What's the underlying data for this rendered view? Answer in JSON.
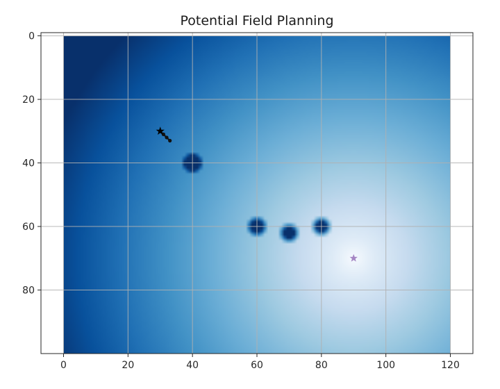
{
  "chart_data": {
    "type": "heatmap",
    "title": "Potential Field Planning",
    "xlabel": "",
    "ylabel": "",
    "xlim": [
      -7,
      127
    ],
    "ylim": [
      100,
      -1
    ],
    "x_ticks": [
      0,
      20,
      40,
      60,
      80,
      100,
      120
    ],
    "y_ticks": [
      0,
      20,
      40,
      60,
      80
    ],
    "grid": true,
    "colormap": "Blues_r",
    "field_extent": {
      "x": [
        0,
        120
      ],
      "y": [
        0,
        100
      ]
    },
    "goal": {
      "x": 90,
      "y": 70
    },
    "obstacles": [
      {
        "x": 40,
        "y": 40
      },
      {
        "x": 60,
        "y": 60
      },
      {
        "x": 70,
        "y": 62
      },
      {
        "x": 80,
        "y": 60
      }
    ],
    "path": [
      {
        "x": 30,
        "y": 30
      },
      {
        "x": 31,
        "y": 31
      },
      {
        "x": 32,
        "y": 32
      },
      {
        "x": 33,
        "y": 33
      }
    ],
    "colors": {
      "start_marker": "#000000",
      "path": "#111111",
      "goal_marker": "#a586c4",
      "grid": "#b0b0b0",
      "axes": "#262626"
    }
  }
}
